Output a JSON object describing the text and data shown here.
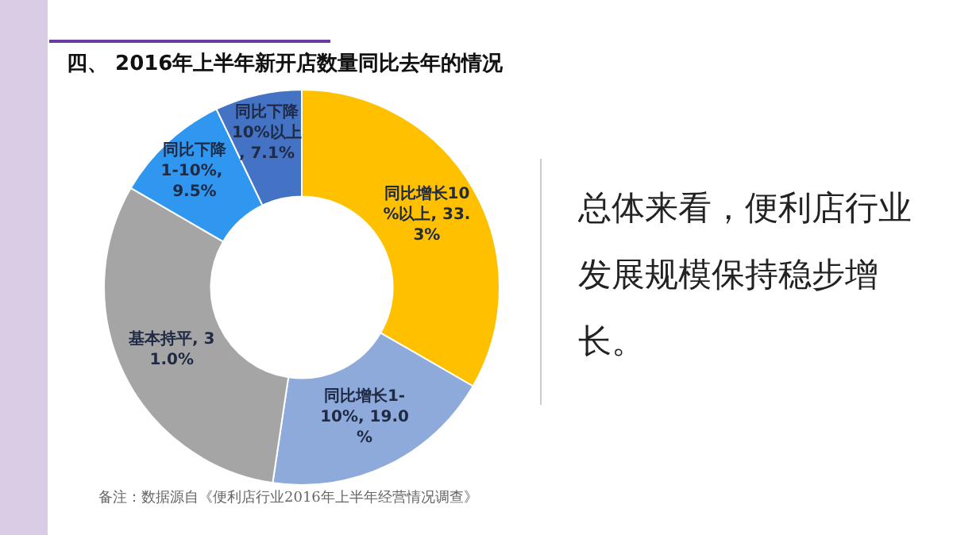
{
  "chart_data": {
    "type": "donut",
    "title": "四、 2016年上半年新开店数量同比去年的情况",
    "categories": [
      "同比增长10%以上",
      "同比增长1-10%",
      "基本持平",
      "同比下降1-10%",
      "同比下降10%以上"
    ],
    "values": [
      33.3,
      19.0,
      31.0,
      9.5,
      7.1
    ],
    "value_labels": [
      ", 33.3%",
      ", 19.0%",
      ", 31.0%",
      ", 9.5%",
      ", 7.1%"
    ],
    "colors": [
      "#ffc000",
      "#8eaadb",
      "#a5a5a5",
      "#2f97f0",
      "#4472c4"
    ],
    "legend": false,
    "annotations": [
      "总体来看，便利店行业发展规模保持稳步增长。",
      "备注：数据源自《便利店行业2016年上半年经营情况调查》"
    ]
  }
}
